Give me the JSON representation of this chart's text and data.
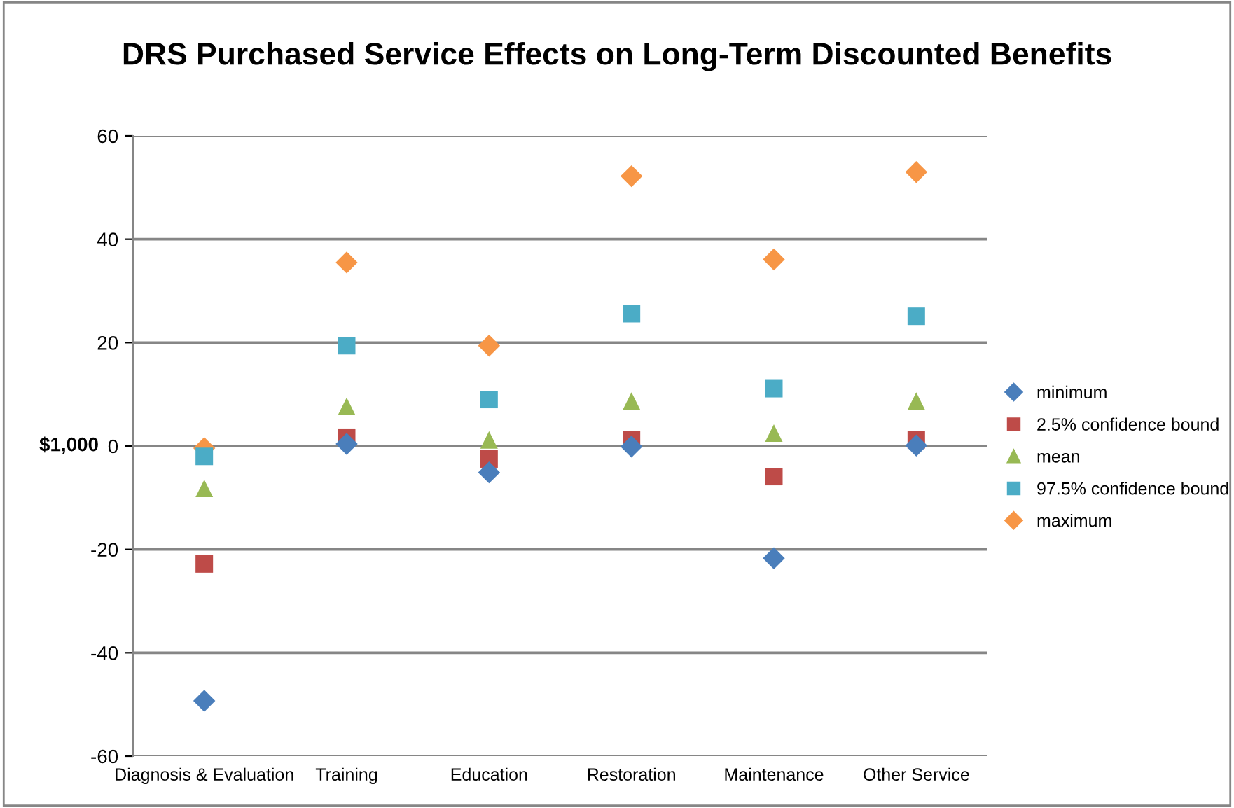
{
  "chart_data": {
    "type": "scatter",
    "title": "DRS Purchased Service Effects on Long-Term Discounted Benefits",
    "ylabel": "$1,000",
    "categories": [
      "Diagnosis & Evaluation",
      "Training",
      "Education",
      "Restoration",
      "Maintenance",
      "Other Service"
    ],
    "ylim": [
      -60,
      60
    ],
    "yticks": [
      -60,
      -40,
      -20,
      0,
      20,
      40,
      60
    ],
    "grid": "y",
    "legend": "right",
    "series": [
      {
        "name": "minimum",
        "color": "#4a7ebb",
        "marker": "diamond",
        "values": [
          -49.3,
          0.4,
          -5.1,
          -0.1,
          -21.7,
          0.1
        ]
      },
      {
        "name": "2.5% confidence bound",
        "color": "#be4b48",
        "marker": "square",
        "values": [
          -22.8,
          1.7,
          -2.5,
          1.2,
          -5.9,
          1.2
        ]
      },
      {
        "name": "mean",
        "color": "#98b954",
        "marker": "triangle",
        "values": [
          -8.2,
          7.7,
          1.2,
          8.7,
          2.5,
          8.7
        ]
      },
      {
        "name": "97.5% confidence bound",
        "color": "#4bacc6",
        "marker": "square",
        "values": [
          -2,
          19.4,
          9,
          25.6,
          11.1,
          25.1
        ]
      },
      {
        "name": "maximum",
        "color": "#f79646",
        "marker": "diamond",
        "values": [
          -0.4,
          35.5,
          19.4,
          52.2,
          36.1,
          53
        ]
      }
    ]
  }
}
